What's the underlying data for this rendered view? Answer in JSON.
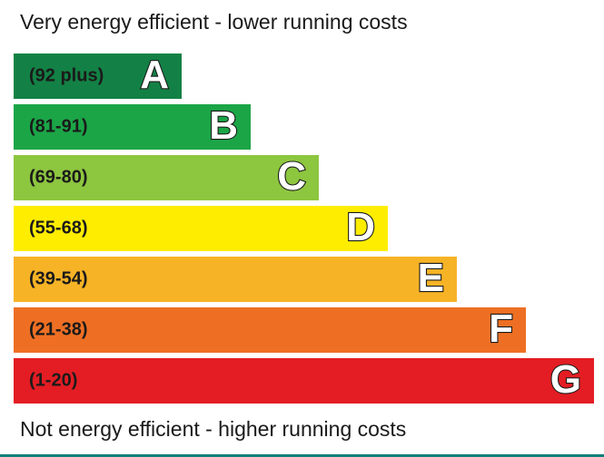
{
  "captions": {
    "top": "Very energy efficient - lower running costs",
    "bottom": "Not energy efficient - higher running costs"
  },
  "chart_data": {
    "type": "bar",
    "orientation": "horizontal",
    "title": "",
    "xlabel": "",
    "ylabel": "",
    "bands": [
      {
        "letter": "A",
        "range": "(92 plus)",
        "color": "#138145"
      },
      {
        "letter": "B",
        "range": "(81-91)",
        "color": "#1ba547"
      },
      {
        "letter": "C",
        "range": "(69-80)",
        "color": "#8dc63f"
      },
      {
        "letter": "D",
        "range": "(55-68)",
        "color": "#ffed00"
      },
      {
        "letter": "E",
        "range": "(39-54)",
        "color": "#f7b326"
      },
      {
        "letter": "F",
        "range": "(21-38)",
        "color": "#ee6f24"
      },
      {
        "letter": "G",
        "range": "(1-20)",
        "color": "#e31d23"
      }
    ]
  }
}
